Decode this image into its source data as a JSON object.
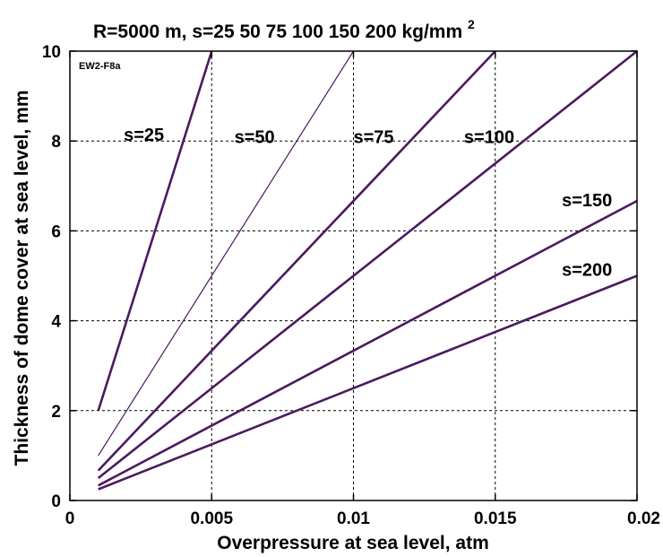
{
  "chart_data": {
    "type": "line",
    "title_main": "R=5000 m, s=25   50   75  100  150  200 kg/mm",
    "title_sup": "2",
    "tag": "EW2-F8a",
    "xlabel": "Overpressure at sea level, atm",
    "ylabel": "Thickness of dome cover at sea level, mm",
    "xlim": [
      0,
      0.02
    ],
    "ylim": [
      0,
      10
    ],
    "xticks": [
      0,
      0.005,
      0.01,
      0.015,
      0.02
    ],
    "xtick_labels": [
      "0",
      "0.005",
      "0.01",
      "0.015",
      "0.02"
    ],
    "yticks": [
      0,
      2,
      4,
      6,
      8,
      10
    ],
    "ytick_labels": [
      "0",
      "2",
      "4",
      "6",
      "8",
      "10"
    ],
    "grid": true,
    "line_color": "#4b1a5e",
    "series": [
      {
        "name": "s=25",
        "x": [
          0.001,
          0.005
        ],
        "y": [
          2.0,
          10.0
        ],
        "width": 2.6
      },
      {
        "name": "s=50",
        "x": [
          0.001,
          0.01
        ],
        "y": [
          1.0,
          10.0
        ],
        "width": 1.2
      },
      {
        "name": "s=75",
        "x": [
          0.001,
          0.015
        ],
        "y": [
          0.667,
          10.0
        ],
        "width": 2.6
      },
      {
        "name": "s=100",
        "x": [
          0.001,
          0.02
        ],
        "y": [
          0.5,
          10.0
        ],
        "width": 2.6
      },
      {
        "name": "s=150",
        "x": [
          0.001,
          0.02
        ],
        "y": [
          0.333,
          6.667
        ],
        "width": 2.6
      },
      {
        "name": "s=200",
        "x": [
          0.001,
          0.02
        ],
        "y": [
          0.25,
          5.0
        ],
        "width": 2.6
      }
    ],
    "annotations": [
      {
        "text": "s=25",
        "x": 0.0019,
        "y": 8.0
      },
      {
        "text": "s=50",
        "x": 0.0058,
        "y": 7.95
      },
      {
        "text": "s=75",
        "x": 0.01,
        "y": 7.95
      },
      {
        "text": "s=100",
        "x": 0.0139,
        "y": 7.95
      },
      {
        "text": "s=150",
        "x": 0.01735,
        "y": 6.55
      },
      {
        "text": "s=200",
        "x": 0.01735,
        "y": 5.0
      }
    ]
  }
}
